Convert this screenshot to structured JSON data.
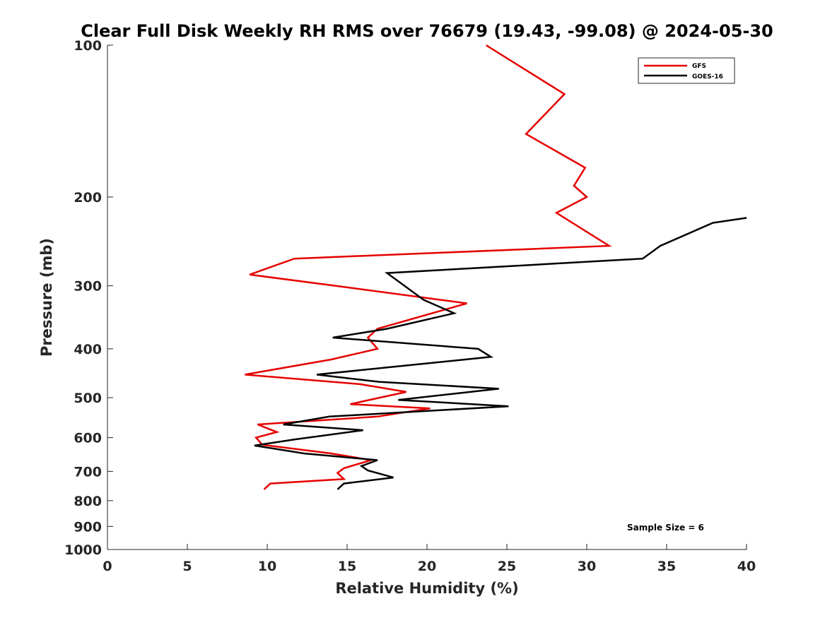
{
  "chart_data": {
    "type": "line",
    "title": "Clear Full Disk Weekly RH RMS over 76679 (19.43, -99.08) @ 2024-05-30",
    "xlabel": "Relative Humidity (%)",
    "ylabel": "Pressure (mb)",
    "xlim": [
      0,
      40
    ],
    "ylim": [
      100,
      1000
    ],
    "y_scale": "log",
    "y_reversed": true,
    "x_ticks": [
      "0",
      "5",
      "10",
      "15",
      "20",
      "25",
      "30",
      "35",
      "40"
    ],
    "y_ticks": [
      "100",
      "200",
      "300",
      "400",
      "500",
      "600",
      "700",
      "800",
      "900",
      "1000"
    ],
    "grid": false,
    "legend_position": "top-right",
    "annotation": "Sample Size = 6",
    "series": [
      {
        "name": "GFS",
        "color": "#e60000",
        "points": [
          [
            23.7,
            100
          ],
          [
            28.6,
            125
          ],
          [
            26.2,
            150
          ],
          [
            29.9,
            175
          ],
          [
            29.2,
            190
          ],
          [
            30.0,
            200
          ],
          [
            28.1,
            215
          ],
          [
            31.4,
            250
          ],
          [
            11.7,
            265
          ],
          [
            8.9,
            285
          ],
          [
            14.3,
            300
          ],
          [
            22.5,
            325
          ],
          [
            16.9,
            365
          ],
          [
            16.3,
            380
          ],
          [
            16.9,
            400
          ],
          [
            14.0,
            420
          ],
          [
            8.6,
            450
          ],
          [
            15.8,
            470
          ],
          [
            18.7,
            487
          ],
          [
            15.2,
            515
          ],
          [
            20.2,
            525
          ],
          [
            16.9,
            545
          ],
          [
            9.4,
            565
          ],
          [
            10.6,
            585
          ],
          [
            9.3,
            600
          ],
          [
            9.7,
            620
          ],
          [
            14.0,
            645
          ],
          [
            16.5,
            665
          ],
          [
            14.8,
            690
          ],
          [
            14.4,
            705
          ],
          [
            14.8,
            725
          ],
          [
            10.2,
            740
          ],
          [
            9.8,
            760
          ]
        ]
      },
      {
        "name": "GOES-16",
        "color": "#000000",
        "points": [
          [
            40.0,
            220
          ],
          [
            37.9,
            225
          ],
          [
            34.6,
            250
          ],
          [
            33.5,
            265
          ],
          [
            17.5,
            283
          ],
          [
            19.8,
            320
          ],
          [
            21.7,
            340
          ],
          [
            17.5,
            365
          ],
          [
            14.1,
            380
          ],
          [
            23.2,
            400
          ],
          [
            24.0,
            415
          ],
          [
            13.1,
            450
          ],
          [
            17.0,
            465
          ],
          [
            24.5,
            480
          ],
          [
            18.2,
            505
          ],
          [
            25.1,
            520
          ],
          [
            13.9,
            545
          ],
          [
            11.0,
            565
          ],
          [
            16.0,
            580
          ],
          [
            11.7,
            605
          ],
          [
            9.2,
            622
          ],
          [
            12.3,
            645
          ],
          [
            16.9,
            665
          ],
          [
            15.9,
            683
          ],
          [
            16.3,
            697
          ],
          [
            17.9,
            720
          ],
          [
            14.8,
            740
          ],
          [
            14.4,
            760
          ]
        ]
      }
    ]
  }
}
